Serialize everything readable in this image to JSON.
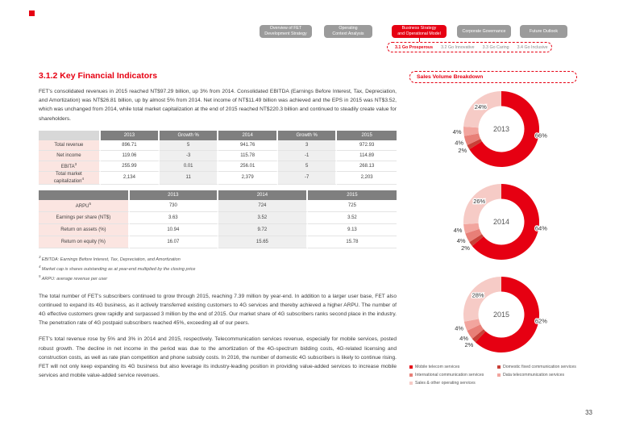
{
  "nav": {
    "tabs": [
      {
        "lines": [
          "Overview of FET",
          "Development Strategy"
        ],
        "active": false
      },
      {
        "lines": [
          "Operating",
          "Context Analysis"
        ],
        "active": false
      },
      {
        "lines": [
          "Business Strategy",
          "and Operational Model"
        ],
        "active": true
      },
      {
        "lines": [
          "Corporate Governance"
        ],
        "active": false
      },
      {
        "lines": [
          "Future Outlook"
        ],
        "active": false
      }
    ],
    "subnav": [
      {
        "label": "3.1 Go Prosperous",
        "active": true
      },
      {
        "label": "3.2 Go Innovative",
        "active": false
      },
      {
        "label": "3.3 Go Caring",
        "active": false
      },
      {
        "label": "3.4 Go Inclusive",
        "active": false
      }
    ]
  },
  "section": {
    "title": "3.1.2 Key Financial Indicators",
    "paragraphs": [
      "FET's consolidated revenues in 2015 reached NT$97.29 billion, up 3% from 2014. Consolidated EBITDA (Earnings Before Interest, Tax, Depreciation, and Amortization) was NT$26.81 billion, up by almost 5% from 2014. Net income of NT$11.49 billion was achieved and the EPS in 2015 was NT$3.52, which was unchanged from 2014, while total market capitalization at the end of 2015 reached NT$220.3 billion and continued to steadily create value for shareholders.",
      "The total number of FET's subscribers continued to grow through 2015, reaching 7.39 million by year-end. In addition to a larger user base, FET also continued to expand its 4G business, as it actively transferred existing customers to 4G services and thereby achieved a higher ARPU. The number of 4G effective customers grew rapidly and surpassed 3 million by the end of 2015. Our market share of 4G subscribers ranks second place in the industry. The penetration rate of 4G postpaid subscribers reached 45%, exceeding all of our peers.",
      "FET's total revenue rose by 5% and 3% in 2014 and 2015, respectively. Telecommunication services revenue, especially for mobile services, posted robust growth. The decline in net income in the period was due to the amortization of the 4G-spectrum bidding costs, 4G-related licensing and construction costs, as well as rate plan competition and phone subsidy costs. In 2016, the number of domestic 4G subscribers is likely to continue rising. FET will not only keep expanding its 4G business but also leverage its industry-leading position in providing value-added services to increase mobile services and mobile value-added service revenues."
    ]
  },
  "tables": [
    {
      "headers": [
        "2013",
        "Growth %",
        "2014",
        "Growth %",
        "2015"
      ],
      "rows": [
        {
          "label": "Total revenue",
          "sup": "",
          "values": [
            "896.71",
            "5",
            "941.76",
            "3",
            "972.93"
          ]
        },
        {
          "label": "Net income",
          "sup": "",
          "values": [
            "119.06",
            "-3",
            "115.78",
            "-1",
            "114.89"
          ]
        },
        {
          "label": "EBITA",
          "sup": "3",
          "values": [
            "255.99",
            "0.01",
            "256.01",
            "5",
            "268.13"
          ]
        },
        {
          "label": "Total market capitalization",
          "sup": "4",
          "values": [
            "2,134",
            "11",
            "2,379",
            "-7",
            "2,203"
          ]
        }
      ]
    },
    {
      "headers": [
        "2013",
        "2014",
        "2015"
      ],
      "rows": [
        {
          "label": "ARPU",
          "sup": "5",
          "values": [
            "730",
            "724",
            "725"
          ]
        },
        {
          "label": "Earnings per share (NT$)",
          "sup": "",
          "values": [
            "3.63",
            "3.52",
            "3.52"
          ]
        },
        {
          "label": "Return on assets (%)",
          "sup": "",
          "values": [
            "10.94",
            "9.72",
            "9.13"
          ]
        },
        {
          "label": "Return on equity (%)",
          "sup": "",
          "values": [
            "16.07",
            "15.65",
            "15.78"
          ]
        }
      ]
    }
  ],
  "footnotes": [
    {
      "sup": "3",
      "text": "EBITDA: Earnings Before Interest, Tax, Depreciation, and Amortization"
    },
    {
      "sup": "4",
      "text": "Market cap is shares outstanding as at year-end multiplied by the closing price"
    },
    {
      "sup": "5",
      "text": "ARPU: average revenue per user"
    }
  ],
  "chart_data": {
    "type": "pie",
    "title": "Sales Volume Breakdown",
    "legend_position": "bottom",
    "categories": [
      "Mobile telecom services",
      "Domestic fixed communication services",
      "International communication services",
      "Data telecommunication services",
      "Sales & other operating services"
    ],
    "colors": [
      "#e60012",
      "#c84138",
      "#e87f77",
      "#f2a59e",
      "#f6cbc6"
    ],
    "donuts": [
      {
        "label": "2013",
        "values": [
          66,
          2,
          4,
          4,
          24
        ]
      },
      {
        "label": "2014",
        "values": [
          64,
          2,
          4,
          4,
          26
        ]
      },
      {
        "label": "2015",
        "values": [
          62,
          2,
          4,
          4,
          28
        ]
      }
    ]
  },
  "colors": {
    "accent": "#e60012"
  },
  "page": {
    "number": "33"
  }
}
